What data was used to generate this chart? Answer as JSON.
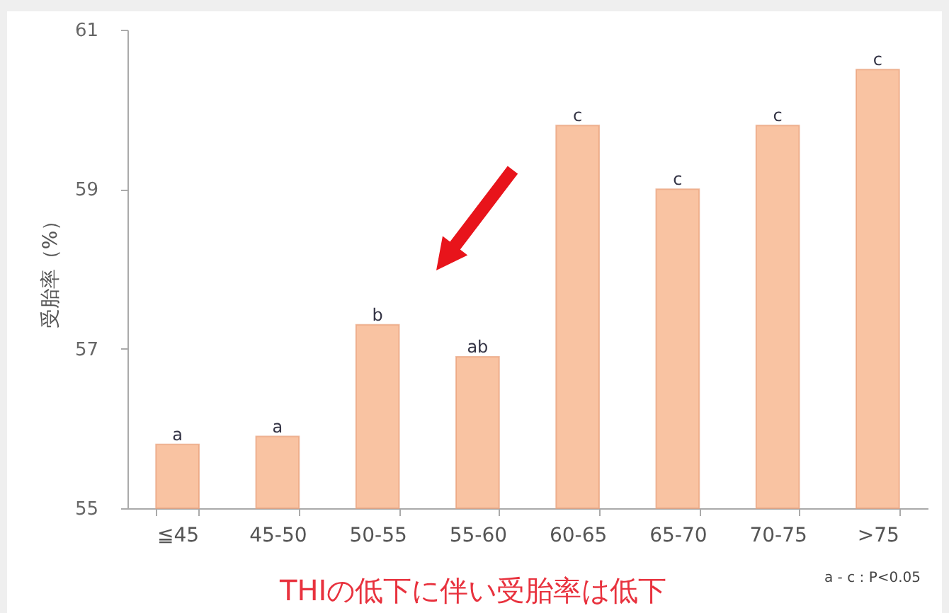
{
  "chart_data": {
    "type": "bar",
    "ylabel": "受胎率（%）",
    "categories": [
      "≦45",
      "45-50",
      "50-55",
      "55-60",
      "60-65",
      "65-70",
      "70-75",
      ">75"
    ],
    "values": [
      55.8,
      55.9,
      57.3,
      56.9,
      59.8,
      59.0,
      59.8,
      60.5
    ],
    "color": "#f9c3a2",
    "ylim": [
      55,
      61
    ],
    "yticks": [
      55,
      57,
      59,
      61
    ],
    "grid": false,
    "annotations": [
      {
        "text": "a",
        "x": "≦45",
        "y": 55.8
      },
      {
        "text": "a",
        "x": "45-50",
        "y": 55.9
      },
      {
        "text": "b",
        "x": "50-55",
        "y": 57.3
      },
      {
        "text": "ab",
        "x": "55-60",
        "y": 56.9
      },
      {
        "text": "c",
        "x": "60-65",
        "y": 59.8
      },
      {
        "text": "c",
        "x": "65-70",
        "y": 59.0
      },
      {
        "text": "c",
        "x": "70-75",
        "y": 59.8
      },
      {
        "text": "c",
        "x": ">75",
        "y": 60.5
      },
      "THIの低下に伴い受胎率は低下",
      "a - c : P<0.05"
    ]
  }
}
